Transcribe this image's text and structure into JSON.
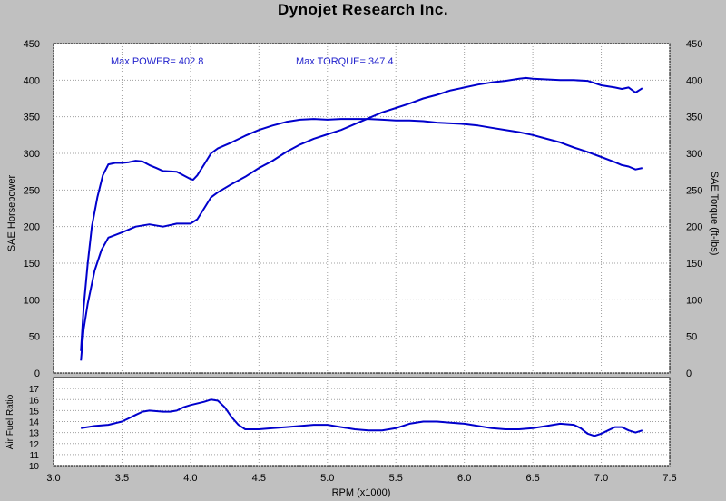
{
  "title": "Dynojet Research Inc.",
  "colors": {
    "background": "#c0c0c0",
    "plot_area": "#ffffff",
    "grid": "#a0a0a0",
    "trace": "#0000cc",
    "annotation_text": "#2222cc"
  },
  "chart_data": [
    {
      "type": "line",
      "title": "",
      "xlabel": "RPM (x1000)",
      "ylabel": "SAE Horsepower",
      "y2label": "SAE Torque (ft-lbs)",
      "xlim": [
        3.0,
        7.5
      ],
      "ylim": [
        0,
        450
      ],
      "xticks": [
        "3.0",
        "3.5",
        "4.0",
        "4.5",
        "5.0",
        "5.5",
        "6.0",
        "6.5",
        "7.0",
        "7.5"
      ],
      "yticks": [
        "0",
        "50",
        "100",
        "150",
        "200",
        "250",
        "300",
        "350",
        "400",
        "450"
      ],
      "grid": true,
      "annotations": [
        "Max POWER= 402.8",
        "Max TORQUE= 347.4"
      ],
      "series": [
        {
          "x": [
            3.2,
            3.22,
            3.25,
            3.3,
            3.35,
            3.4,
            3.5,
            3.6,
            3.7,
            3.8,
            3.9,
            4.0,
            4.05,
            4.1,
            4.15,
            4.2,
            4.3,
            4.4,
            4.5,
            4.6,
            4.7,
            4.8,
            4.9,
            5.0,
            5.1,
            5.2,
            5.3,
            5.4,
            5.5,
            5.6,
            5.7,
            5.8,
            5.9,
            6.0,
            6.1,
            6.2,
            6.3,
            6.4,
            6.45,
            6.5,
            6.6,
            6.7,
            6.8,
            6.9,
            7.0,
            7.1,
            7.15,
            7.2,
            7.25,
            7.3
          ],
          "values": [
            17,
            60,
            95,
            140,
            168,
            185,
            192,
            200,
            203,
            200,
            204,
            204,
            210,
            225,
            240,
            247,
            258,
            268,
            280,
            290,
            302,
            312,
            320,
            326,
            332,
            340,
            348,
            356,
            362,
            368,
            375,
            380,
            386,
            390,
            394,
            397,
            399,
            402,
            403,
            402,
            401,
            400,
            400,
            399,
            393,
            390,
            388,
            390,
            383,
            389
          ]
        },
        {
          "x": [
            3.2,
            3.22,
            3.25,
            3.28,
            3.32,
            3.36,
            3.4,
            3.45,
            3.5,
            3.55,
            3.6,
            3.65,
            3.7,
            3.75,
            3.8,
            3.9,
            3.95,
            4.0,
            4.02,
            4.05,
            4.1,
            4.15,
            4.2,
            4.3,
            4.4,
            4.5,
            4.6,
            4.7,
            4.8,
            4.9,
            5.0,
            5.1,
            5.2,
            5.3,
            5.4,
            5.5,
            5.6,
            5.7,
            5.8,
            5.9,
            6.0,
            6.1,
            6.2,
            6.3,
            6.4,
            6.5,
            6.6,
            6.7,
            6.8,
            6.9,
            7.0,
            7.1,
            7.15,
            7.2,
            7.25,
            7.3
          ],
          "values": [
            30,
            90,
            150,
            200,
            240,
            270,
            285,
            287,
            287,
            288,
            290,
            289,
            284,
            280,
            276,
            275,
            270,
            265,
            264,
            270,
            285,
            300,
            307,
            315,
            324,
            332,
            338,
            343,
            346,
            347,
            346,
            347,
            347,
            347,
            346,
            345,
            345,
            344,
            342,
            341,
            340,
            338,
            335,
            332,
            329,
            325,
            320,
            315,
            308,
            302,
            295,
            288,
            284,
            282,
            278,
            280
          ]
        }
      ]
    },
    {
      "type": "line",
      "title": "",
      "xlabel": "RPM (x1000)",
      "ylabel": "Air Fuel Ratio",
      "xlim": [
        3.0,
        7.5
      ],
      "ylim": [
        10,
        18
      ],
      "yticks": [
        "10",
        "11",
        "12",
        "13",
        "14",
        "15",
        "16",
        "17"
      ],
      "grid": true,
      "series": [
        {
          "x": [
            3.2,
            3.3,
            3.4,
            3.5,
            3.55,
            3.6,
            3.65,
            3.7,
            3.8,
            3.85,
            3.9,
            3.95,
            4.0,
            4.1,
            4.15,
            4.2,
            4.25,
            4.3,
            4.35,
            4.4,
            4.5,
            4.6,
            4.7,
            4.8,
            4.9,
            5.0,
            5.1,
            5.2,
            5.3,
            5.4,
            5.5,
            5.6,
            5.7,
            5.8,
            5.9,
            6.0,
            6.1,
            6.2,
            6.3,
            6.4,
            6.5,
            6.6,
            6.7,
            6.8,
            6.85,
            6.9,
            6.95,
            7.0,
            7.05,
            7.1,
            7.15,
            7.2,
            7.25,
            7.3
          ],
          "values": [
            13.4,
            13.6,
            13.7,
            14.0,
            14.3,
            14.6,
            14.9,
            15.0,
            14.9,
            14.9,
            15.0,
            15.3,
            15.5,
            15.8,
            16.0,
            15.9,
            15.3,
            14.4,
            13.7,
            13.3,
            13.3,
            13.4,
            13.5,
            13.6,
            13.7,
            13.7,
            13.5,
            13.3,
            13.2,
            13.2,
            13.4,
            13.8,
            14.0,
            14.0,
            13.9,
            13.8,
            13.6,
            13.4,
            13.3,
            13.3,
            13.4,
            13.6,
            13.8,
            13.7,
            13.4,
            12.9,
            12.7,
            12.9,
            13.2,
            13.5,
            13.5,
            13.2,
            13.0,
            13.2
          ]
        }
      ]
    }
  ]
}
